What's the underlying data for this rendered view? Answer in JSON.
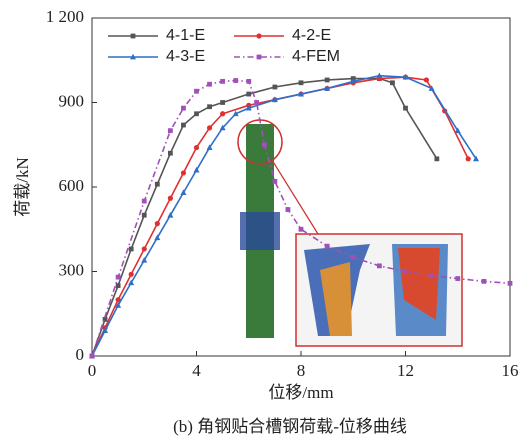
{
  "chart_data": {
    "type": "line",
    "x_label": "位移/mm",
    "y_label": "荷载/kN",
    "caption": "(b) 角钢贴合槽钢荷载-位移曲线",
    "xlim": [
      0,
      16
    ],
    "ylim": [
      0,
      1200
    ],
    "xticks": [
      0,
      4,
      8,
      12,
      16
    ],
    "yticks": [
      0,
      300,
      600,
      900,
      {
        "value": 1200,
        "label": "1 200"
      }
    ],
    "series": [
      {
        "name": "4-1-E",
        "color": "#555555",
        "marker": "square",
        "dash": "solid",
        "x": [
          0,
          0.5,
          1,
          1.5,
          2,
          2.5,
          3,
          3.5,
          4,
          4.5,
          5,
          6,
          7,
          8,
          9,
          10,
          11,
          11.5,
          12,
          13.2
        ],
        "values": [
          0,
          130,
          250,
          380,
          500,
          610,
          720,
          820,
          860,
          885,
          900,
          930,
          955,
          970,
          980,
          985,
          985,
          970,
          880,
          700
        ]
      },
      {
        "name": "4-2-E",
        "color": "#e03030",
        "marker": "circle",
        "dash": "solid",
        "x": [
          0,
          0.5,
          1,
          1.5,
          2,
          2.5,
          3,
          3.5,
          4,
          4.5,
          5,
          6,
          7,
          8,
          9,
          10,
          11,
          12,
          12.8,
          13.5,
          14.4
        ],
        "values": [
          0,
          100,
          200,
          290,
          380,
          470,
          560,
          650,
          740,
          810,
          860,
          890,
          910,
          930,
          950,
          970,
          985,
          990,
          980,
          870,
          700
        ]
      },
      {
        "name": "4-3-E",
        "color": "#2f6fc8",
        "marker": "triangle",
        "dash": "solid",
        "x": [
          0,
          0.5,
          1,
          1.5,
          2,
          2.5,
          3,
          3.5,
          4,
          4.5,
          5,
          5.5,
          6,
          7,
          8,
          9,
          10,
          11,
          12,
          13,
          14,
          14.7
        ],
        "values": [
          0,
          90,
          180,
          260,
          340,
          420,
          500,
          580,
          660,
          740,
          810,
          860,
          880,
          910,
          930,
          950,
          975,
          995,
          990,
          950,
          800,
          700
        ]
      },
      {
        "name": "4-FEM",
        "color": "#a050b8",
        "marker": "square",
        "dash": "dashdot",
        "x": [
          0,
          1,
          2,
          3,
          3.5,
          4,
          4.5,
          5,
          5.5,
          6,
          6.3,
          6.6,
          7,
          7.5,
          8,
          9,
          10,
          11,
          12,
          13,
          14,
          15,
          16
        ],
        "values": [
          0,
          280,
          550,
          800,
          880,
          940,
          965,
          975,
          978,
          975,
          900,
          750,
          620,
          520,
          450,
          390,
          350,
          320,
          300,
          285,
          275,
          265,
          258
        ]
      }
    ]
  }
}
